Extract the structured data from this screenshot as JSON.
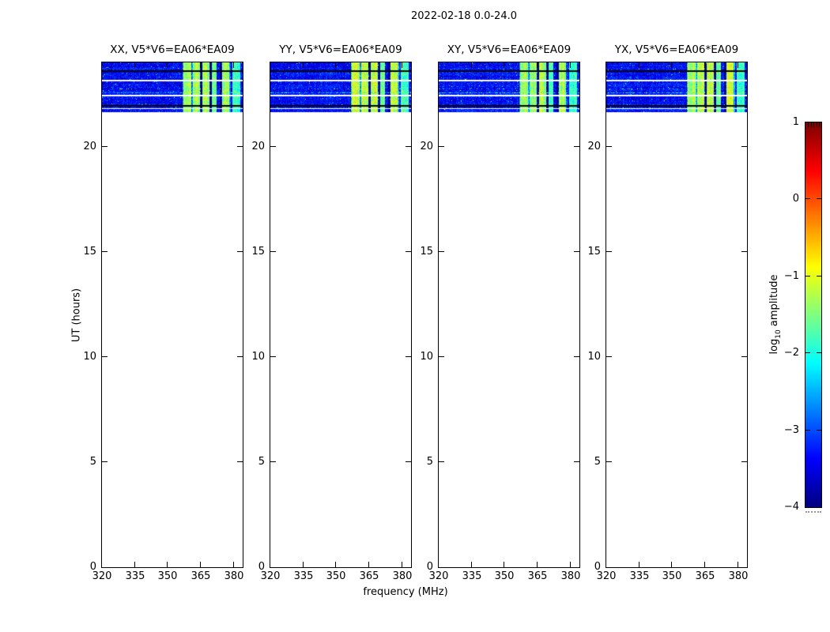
{
  "figure": {
    "title": "2022-02-18 0.0-24.0",
    "background": "#ffffff"
  },
  "chart_data": {
    "type": "heatmap",
    "title": "2022-02-18 0.0-24.0",
    "date": "2022-02-18",
    "time_range_label": "0.0-24.0",
    "xlabel": "frequency (MHz)",
    "ylabel": "UT (hours)",
    "xlim": [
      320,
      384
    ],
    "ylim": [
      0,
      24
    ],
    "x_ticks": [
      "320",
      "335",
      "350",
      "365",
      "380"
    ],
    "x_tick_values": [
      320,
      335,
      350,
      365,
      380
    ],
    "y_ticks": [
      "0",
      "5",
      "10",
      "15",
      "20"
    ],
    "y_tick_values": [
      0,
      5,
      10,
      15,
      20
    ],
    "grid": false,
    "panels": [
      {
        "id": "XX",
        "title": "XX, V5*V6=EA06*EA09",
        "seed": 101,
        "relative_intensity": 1.0
      },
      {
        "id": "YY",
        "title": "YY, V5*V6=EA06*EA09",
        "seed": 202,
        "relative_intensity": 1.12
      },
      {
        "id": "XY",
        "title": "XY, V5*V6=EA06*EA09",
        "seed": 303,
        "relative_intensity": 0.9
      },
      {
        "id": "YX",
        "title": "YX, V5*V6=EA06*EA09",
        "seed": 404,
        "relative_intensity": 1.05
      }
    ],
    "colormap": "jet",
    "colorbar": {
      "label": "log10 amplitude",
      "label_prefix": "log",
      "label_sub": "10",
      "label_suffix": " amplitude",
      "range": [
        -4,
        1
      ],
      "ticks": [
        "1",
        "0",
        "−1",
        "−2",
        "−3",
        "−4"
      ],
      "tick_values": [
        1,
        0,
        -1,
        -2,
        -3,
        -4
      ],
      "position": "right"
    },
    "spectrogram": {
      "description": "Blue low-amplitude noise occupying only UT ~21.6-24.0; rest of the 0-24 h range is empty (white). Bright cyan/green RFI bands near 357-383 MHz.",
      "noise_log10_mean": -3.35,
      "noise_log10_sigma": 0.3,
      "segments_ut": [
        {
          "t0": 21.99,
          "t1": 24.0,
          "kind": "data"
        },
        {
          "t0": 21.9,
          "t1": 21.99,
          "kind": "flagged"
        },
        {
          "t0": 21.83,
          "t1": 21.9,
          "kind": "data"
        },
        {
          "t0": 21.79,
          "t1": 21.83,
          "kind": "no-data"
        },
        {
          "t0": 21.62,
          "t1": 21.79,
          "kind": "data"
        }
      ],
      "lines_ut": [
        {
          "ut": 23.57,
          "kind": "black",
          "hw": 0.037
        },
        {
          "ut": 23.13,
          "kind": "white",
          "hw": 0.03
        },
        {
          "ut": 22.76,
          "kind": "sparse",
          "hw": 0.019
        },
        {
          "ut": 22.56,
          "kind": "bright",
          "hw": 0.03
        },
        {
          "ut": 22.42,
          "kind": "white",
          "hw": 0.03
        }
      ],
      "rfi_bands_mhz": [
        {
          "f0": 356.5,
          "f1": 364.5,
          "strength": 0.95
        },
        {
          "f0": 365.5,
          "f1": 369.0,
          "strength": 1.0
        },
        {
          "f0": 370.0,
          "f1": 372.0,
          "strength": 0.6
        },
        {
          "f0": 374.5,
          "f1": 378.5,
          "strength": 0.95
        },
        {
          "f0": 379.5,
          "f1": 383.0,
          "strength": 0.45
        }
      ]
    }
  }
}
